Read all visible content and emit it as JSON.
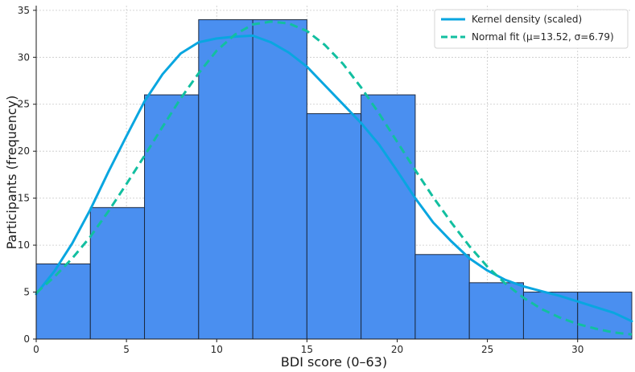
{
  "chart_data": {
    "type": "bar",
    "title": "",
    "xlabel": "BDI score (0–63)",
    "ylabel": "Participants (frequency)",
    "xlim": [
      0,
      33
    ],
    "ylim": [
      0,
      35.5
    ],
    "grid": true,
    "legend_position": "top-right",
    "bar_color": "#4a8ff0",
    "bar_edge_color": "#1c2a40",
    "x_ticks": [
      0,
      5,
      10,
      15,
      20,
      25,
      30
    ],
    "y_ticks": [
      0,
      5,
      10,
      15,
      20,
      25,
      30,
      35
    ],
    "bins": [
      {
        "start": 0,
        "end": 3,
        "count": 8
      },
      {
        "start": 3,
        "end": 6,
        "count": 14
      },
      {
        "start": 6,
        "end": 9,
        "count": 26
      },
      {
        "start": 9,
        "end": 12,
        "count": 34
      },
      {
        "start": 12,
        "end": 15,
        "count": 34
      },
      {
        "start": 15,
        "end": 18,
        "count": 24
      },
      {
        "start": 18,
        "end": 21,
        "count": 26
      },
      {
        "start": 21,
        "end": 24,
        "count": 9
      },
      {
        "start": 24,
        "end": 27,
        "count": 6
      },
      {
        "start": 27,
        "end": 30,
        "count": 5
      },
      {
        "start": 30,
        "end": 33,
        "count": 5
      }
    ],
    "series": [
      {
        "name": "Kernel density (scaled)",
        "style": "solid",
        "color": "#09a6e0",
        "x": [
          0,
          1,
          2,
          3,
          4,
          5,
          6,
          7,
          8,
          9,
          10,
          11,
          12,
          13,
          14,
          15,
          16,
          17,
          18,
          19,
          20,
          21,
          22,
          23,
          24,
          25,
          26,
          27,
          28,
          29,
          30,
          31,
          32,
          33
        ],
        "y": [
          4.8,
          7.2,
          10.2,
          13.8,
          17.8,
          21.6,
          25.3,
          28.2,
          30.4,
          31.6,
          32.0,
          32.2,
          32.3,
          31.6,
          30.5,
          29.0,
          27.0,
          25.0,
          23.0,
          20.7,
          17.9,
          15.0,
          12.4,
          10.4,
          8.6,
          7.3,
          6.3,
          5.6,
          5.1,
          4.6,
          4.0,
          3.4,
          2.8,
          1.9
        ]
      },
      {
        "name": "Normal fit (μ=13.52, σ=6.79)",
        "style": "dashed",
        "color": "#12bfa0",
        "x": [
          0,
          1,
          2,
          3,
          4,
          5,
          6,
          7,
          8,
          9,
          10,
          11,
          12,
          13,
          14,
          15,
          16,
          17,
          18,
          19,
          20,
          21,
          22,
          23,
          24,
          25,
          26,
          27,
          28,
          29,
          30,
          31,
          32,
          33
        ],
        "y": [
          4.9,
          6.6,
          8.6,
          10.9,
          13.6,
          16.5,
          19.5,
          22.6,
          25.6,
          28.3,
          30.7,
          32.4,
          33.5,
          33.8,
          33.6,
          32.8,
          31.3,
          29.3,
          26.8,
          24.0,
          21.0,
          18.0,
          15.1,
          12.4,
          9.9,
          7.7,
          5.9,
          4.4,
          3.2,
          2.3,
          1.6,
          1.1,
          0.7,
          0.5
        ]
      }
    ]
  }
}
